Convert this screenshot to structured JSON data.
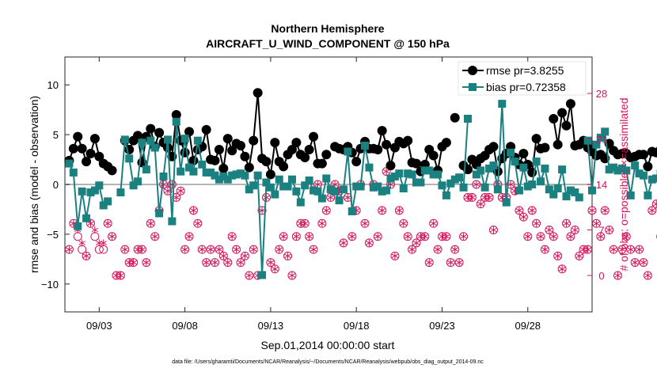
{
  "chart_data": {
    "type": "line",
    "title": "Northern Hemisphere",
    "subtitle": "AIRCRAFT_U_WIND_COMPONENT @ 150 hPa",
    "xlabel": "Sep.01,2014 00:00:00 start",
    "ylabel": "rmse and bias (model - observation)",
    "ylabel_right": "# of obs: o=possible; ×=assimilated",
    "footer": "data file: /Users/gharamti/Documents/NCAR/Reanalysis/~/Documents/NCAR/Reanalysis/webpub/obs_diag_output_2014-09.nc",
    "xlim": [
      0,
      30.75
    ],
    "ylim": [
      -12.8,
      12.8
    ],
    "ylim_right": [
      -5.6,
      33.6
    ],
    "x_ticks": [
      2,
      7,
      12,
      17,
      22,
      27
    ],
    "x_tick_labels": [
      "09/03",
      "09/08",
      "09/13",
      "09/18",
      "09/23",
      "09/28"
    ],
    "y_ticks": [
      -10,
      -5,
      0,
      5,
      10
    ],
    "y_tick_labels": [
      "−10",
      "−5",
      "0",
      "5",
      "10"
    ],
    "y_ticks_right": [
      0,
      7,
      14,
      21,
      28
    ],
    "y_tick_labels_right": [
      "0",
      "7",
      "14",
      "21",
      "28"
    ],
    "zero_line": 0,
    "colors": {
      "rmse": "#000000",
      "bias": "#1a8080",
      "obs": "#d4145a",
      "zero": "#b4b4b4"
    },
    "series": [
      {
        "name": "rmse",
        "legend": "rmse pr=3.8255",
        "values": [
          2.4,
          3.6,
          4.8,
          3.6,
          2.3,
          3.1,
          4.6,
          2.8,
          2.1,
          1.8,
          1.4,
          null,
          null,
          4.4,
          3.5,
          4.4,
          4.9,
          2.2,
          4.8,
          5.6,
          3.8,
          5.2,
          4.2,
          3.7,
          2.8,
          7.0,
          4.4,
          3.2,
          5.3,
          2.4,
          3.5,
          3.8,
          5.5,
          2.5,
          2.4,
          3.5,
          1.6,
          4.6,
          3.4,
          4.1,
          3.9,
          2.8,
          1.7,
          4.4,
          9.2,
          2.6,
          2.3,
          1.0,
          4.2,
          2.3,
          1.8,
          3.0,
          3.5,
          4.2,
          3.0,
          2.7,
          3.5,
          4.8,
          2.1,
          2.1,
          3.0,
          null,
          3.8,
          3.6,
          3.5,
          3.8,
          3.2,
          2.3,
          3.6,
          4.3,
          3.6,
          3.6,
          3.5,
          5.4,
          4.0,
          1.9,
          3.7,
          4.3,
          4.1,
          4.4,
          2.2,
          2.1,
          1.3,
          2.0,
          3.5,
          2.9,
          1.4,
          3.8,
          4.2,
          null,
          6.7,
          null,
          1.9,
          1.5,
          2.5,
          2.0,
          2.6,
          2.9,
          3.5,
          3.8,
          1.3,
          2.6,
          3.1,
          3.8,
          2.7,
          2.0,
          3.1,
          2.0,
          1.2,
          4.6,
          3.6,
          3.7,
          null,
          6.6,
          4.0,
          7.2,
          5.9,
          8.1,
          3.9,
          4.0,
          4.4,
          3.7,
          3.3,
          2.9,
          3.0,
          2.6,
          4.1,
          3.4,
          3.0,
          3.1,
          3.1,
          2.7,
          2.8,
          3.0,
          3.0,
          1.8,
          3.3,
          3.2,
          3.5,
          2.6,
          5.2,
          4.7,
          4.2,
          3.6,
          4.1,
          null,
          null,
          6.8,
          2.8,
          7.9,
          5.7,
          2.9,
          2.9,
          2.6,
          null,
          null,
          null,
          null,
          null,
          null,
          null,
          null,
          null,
          null,
          null,
          null,
          null,
          null,
          5.9,
          4.3,
          4.4,
          4.1,
          4.0,
          3.9,
          3.5,
          3.9,
          3.7,
          3.5,
          4.0,
          3.5,
          3.6,
          2.7,
          3.5,
          null,
          3.8,
          3.8
        ],
        "yaxis": "left"
      },
      {
        "name": "bias",
        "legend": "bias pr=0.72358",
        "values": [
          2.1,
          1.2,
          -4.2,
          -0.7,
          -3.4,
          -0.8,
          -0.6,
          -0.1,
          -2.1,
          -1.7,
          null,
          null,
          -0.8,
          4.5,
          2.6,
          -0.1,
          0.3,
          4.2,
          1.5,
          4.4,
          3.7,
          -2.9,
          0.8,
          4.5,
          -3.7,
          6.3,
          1.3,
          4.6,
          1.7,
          1.3,
          4.4,
          2.0,
          1.2,
          1.2,
          0.9,
          0.5,
          0.8,
          0.5,
          0.9,
          1.0,
          1.1,
          0.9,
          -0.5,
          -0.1,
          0.9,
          -9.1,
          0.2,
          -0.3,
          -1.0,
          0.5,
          -0.2,
          -0.2,
          0.5,
          -0.7,
          -1.8,
          -0.1,
          0.4,
          -0.6,
          -0.7,
          -1.4,
          0.6,
          -0.5,
          -0.7,
          -1.6,
          -0.5,
          3.3,
          -2.7,
          -0.2,
          -0.2,
          3.9,
          1.7,
          -0.3,
          -0.2,
          -0.7,
          -0.6,
          0.6,
          0.8,
          1.1,
          -0.4,
          1.1,
          1.0,
          0.2,
          0.2,
          1.4,
          1.4,
          1.0,
          1.0,
          -0.1,
          -1.1,
          0.1,
          0.5,
          0.7,
          -0.3,
          6.6,
          null,
          1.0,
          1.4,
          -0.3,
          1.6,
          1.9,
          -0.5,
          8.1,
          -1.8,
          3.2,
          2.3,
          -0.6,
          1.7,
          -0.2,
          0.0,
          2.3,
          0.3,
          1.6,
          -0.5,
          -1.0,
          -0.4,
          1.5,
          -1.2,
          -0.6,
          -0.8,
          -1.3,
          null,
          4.4,
          -0.6,
          4.0,
          4.7,
          5.3,
          1.5,
          1.7,
          1.4,
          1.6,
          1.4,
          -1.1,
          1.9,
          1.1,
          0.9,
          -1.1,
          0.5,
          0.6,
          1.1,
          -0.3,
          -0.7,
          -0.1,
          -1.4,
          -0.5,
          2.4,
          0.1,
          -0.3,
          -0.8,
          -0.6,
          -0.4,
          -0.5,
          -1.5,
          -0.1,
          -0.6,
          0.0,
          -0.2,
          0.8,
          -0.4,
          1.1,
          0.3,
          2.5,
          -1.6,
          1.5,
          3.8,
          -6.5,
          1.7,
          1.7,
          2.5,
          null,
          null,
          null,
          null,
          null,
          null,
          null,
          null,
          null,
          null,
          null,
          null,
          8.0,
          3.5,
          -0.8,
          1.4,
          -2.0,
          -0.7,
          -1.3,
          -0.8,
          -0.3,
          -0.4,
          1.4,
          -0.2,
          3.0,
          -0.1,
          1.8,
          0.3,
          1.2,
          1.2
        ],
        "yaxis": "left"
      }
    ],
    "obs_possible": [
      4,
      8,
      6,
      4,
      3,
      8,
      6,
      4,
      4,
      8,
      6,
      0,
      0,
      4,
      2,
      2,
      4,
      4,
      2,
      8,
      6,
      10,
      14,
      13,
      14,
      12,
      13,
      4,
      6,
      10,
      8,
      4,
      2,
      4,
      2,
      4,
      3,
      2,
      6,
      4,
      2,
      3,
      0,
      4,
      0,
      10,
      12,
      2,
      1,
      4,
      6,
      3,
      0,
      6,
      8,
      8,
      6,
      4,
      14,
      8,
      10,
      12,
      14,
      13,
      5,
      12,
      6,
      10,
      14,
      8,
      5,
      14,
      6,
      10,
      16,
      14,
      3,
      10,
      8,
      6,
      4,
      5,
      6,
      6,
      2,
      8,
      4,
      6,
      6,
      2,
      4,
      2,
      6,
      12,
      12,
      14,
      11,
      12,
      12,
      7,
      14,
      12,
      12,
      14,
      13,
      10,
      9,
      6,
      10,
      8,
      6,
      4,
      7,
      6,
      3,
      1,
      8,
      6,
      7,
      3,
      4,
      4,
      10,
      8,
      6,
      10,
      7,
      4,
      0,
      4,
      6,
      4,
      2,
      4,
      2,
      0,
      10,
      11,
      6,
      2,
      4,
      6,
      2,
      0,
      4,
      8,
      8,
      11,
      6,
      5,
      2,
      0,
      4,
      6,
      6,
      4,
      12,
      4,
      8,
      14,
      5,
      3,
      0,
      0,
      6,
      4,
      6,
      3,
      12,
      10,
      13,
      4,
      8,
      6,
      6,
      3,
      4,
      2,
      2,
      0,
      0,
      4,
      4,
      5,
      13,
      8,
      6,
      2,
      2,
      1,
      8,
      6,
      0,
      0,
      0,
      4,
      5,
      0,
      0
    ],
    "obs_assimilated": [
      4,
      8,
      7,
      5,
      3,
      8,
      7,
      5,
      5,
      8,
      6,
      0,
      0,
      4,
      2,
      2,
      4,
      4,
      2,
      8,
      6,
      10,
      14,
      13,
      14,
      12,
      13,
      4,
      6,
      10,
      8,
      4,
      2,
      4,
      2,
      4,
      3,
      2,
      6,
      4,
      2,
      3,
      0,
      4,
      0,
      10,
      12,
      2,
      1,
      4,
      6,
      3,
      0,
      6,
      8,
      8,
      6,
      4,
      14,
      8,
      10,
      12,
      14,
      13,
      5,
      12,
      6,
      10,
      14,
      8,
      5,
      14,
      6,
      10,
      16,
      14,
      3,
      10,
      8,
      6,
      4,
      5,
      6,
      6,
      2,
      8,
      4,
      6,
      6,
      2,
      4,
      2,
      6,
      12,
      12,
      14,
      11,
      12,
      12,
      7,
      14,
      12,
      12,
      14,
      13,
      10,
      9,
      6,
      10,
      8,
      6,
      4,
      7,
      6,
      3,
      1,
      8,
      6,
      7,
      3,
      4,
      4,
      10,
      8,
      6,
      10,
      7,
      4,
      0,
      4,
      6,
      4,
      2,
      4,
      2,
      0,
      10,
      11,
      6,
      2,
      4,
      6,
      2,
      0,
      4,
      8,
      8,
      11,
      6,
      5,
      2,
      0,
      4,
      6,
      6,
      4,
      12,
      4,
      8,
      14,
      5,
      3,
      0,
      0,
      6,
      4,
      6,
      3,
      12,
      10,
      13,
      4,
      8,
      6,
      6,
      3,
      4,
      2,
      2,
      0,
      0,
      4,
      4,
      5,
      13,
      8,
      6,
      2,
      2,
      1,
      8,
      6,
      0,
      0,
      0,
      4,
      5,
      0,
      0
    ]
  }
}
